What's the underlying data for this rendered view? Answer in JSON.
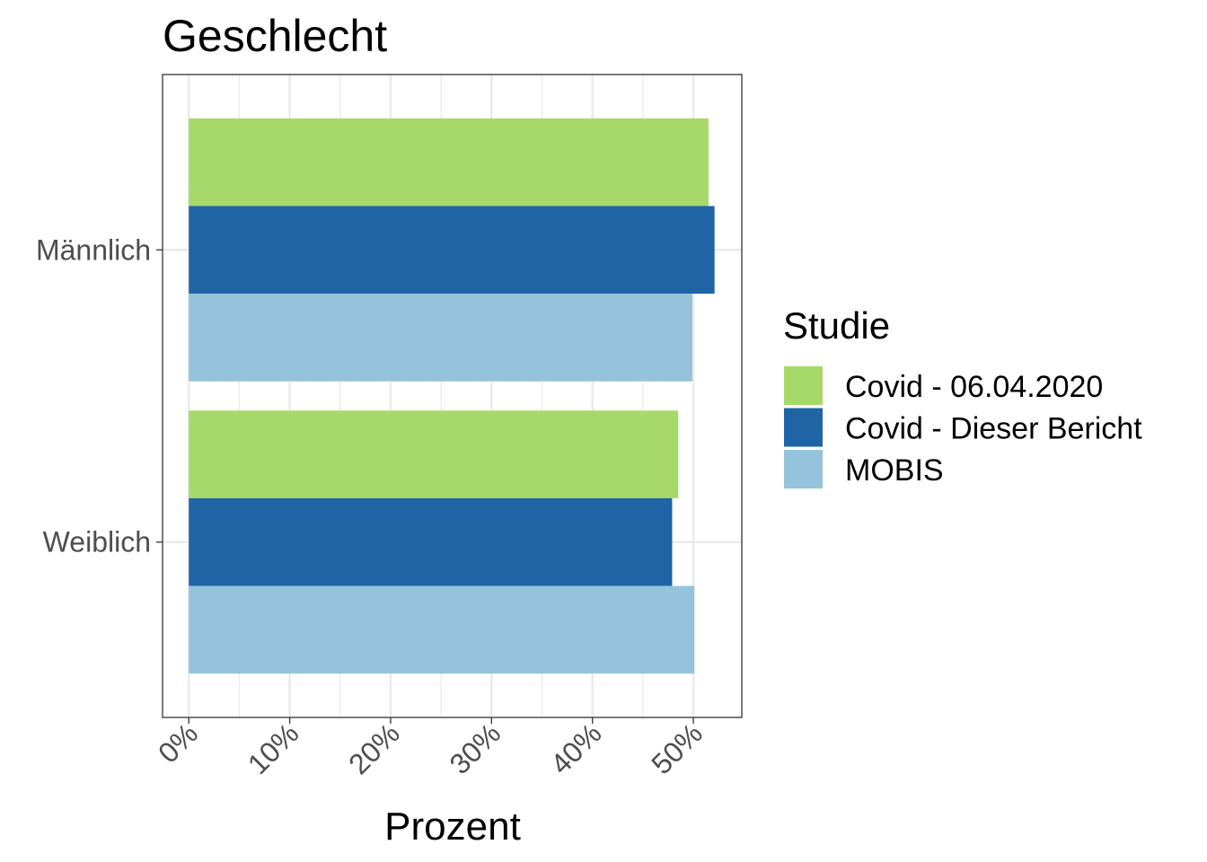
{
  "chart_data": {
    "type": "bar",
    "orientation": "horizontal",
    "title": "Geschlecht",
    "xlabel": "Prozent",
    "ylabel": "",
    "categories": [
      "Weiblich",
      "Männlich"
    ],
    "series": [
      {
        "name": "Covid - 06.04.2020",
        "color": "#a6d96a",
        "values": [
          48.5,
          51.5
        ]
      },
      {
        "name": "Covid - Dieser Bericht",
        "color": "#1f65a6",
        "values": [
          47.9,
          52.1
        ]
      },
      {
        "name": "MOBIS",
        "color": "#96c3dc",
        "values": [
          50.1,
          49.9
        ]
      }
    ],
    "xlim": [
      -2.6,
      54.8
    ],
    "xticks": [
      0,
      10,
      20,
      30,
      40,
      50
    ],
    "xtick_labels": [
      "0%",
      "10%",
      "20%",
      "30%",
      "40%",
      "50%"
    ],
    "grid": true,
    "legend": {
      "title": "Studie",
      "placement": "right"
    }
  }
}
